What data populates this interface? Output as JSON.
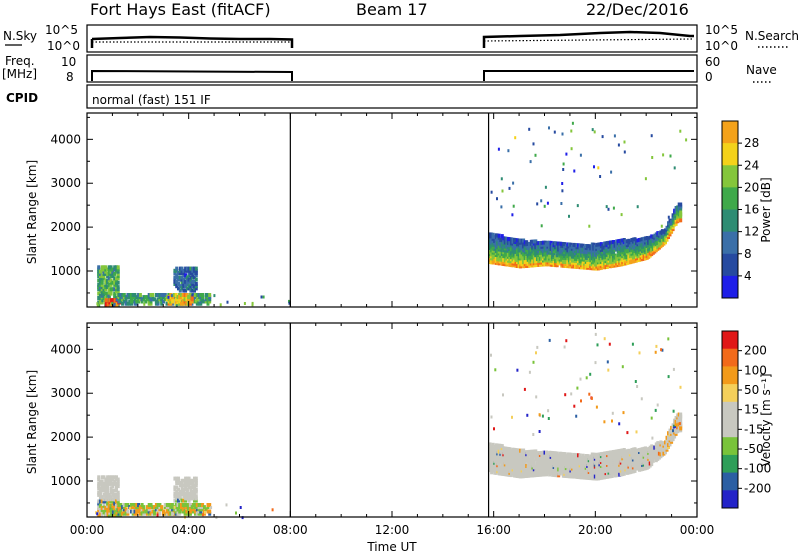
{
  "header": {
    "station": "Fort Hays East (fitACF)",
    "beam": "Beam 17",
    "date": "22/Dec/2016"
  },
  "strips": {
    "nsky_label": "N.Sky",
    "nsearch_label": "N.Search",
    "noise_ticks": [
      "10^5",
      "10^0"
    ],
    "freq_label": "Freq.",
    "freq_unit": "[MHz]",
    "freq_ticks": [
      "10",
      "8"
    ],
    "nave_label": "Nave",
    "nave_ticks": [
      "60",
      "0"
    ],
    "cpid_label": "CPID",
    "cpid_text": "normal (fast) 151 IF"
  },
  "colors": {
    "power": [
      "#1f1fe8",
      "#264aa0",
      "#3a6fa8",
      "#2e8c73",
      "#3fa94a",
      "#84c63b",
      "#f4d21a",
      "#f4a21a",
      "#f26a1a",
      "#e01818"
    ],
    "velocity": [
      "#e01818",
      "#f26a1a",
      "#f29a1a",
      "#f4cf5a",
      "#c8c8c0",
      "#c8c8c0",
      "#79c33a",
      "#2e9e58",
      "#2b5fa3",
      "#2323c8"
    ],
    "ground_scatter": "#c8c8c0"
  },
  "chart_data": [
    {
      "type": "heatmap",
      "panel": "power",
      "ylabel": "Slant Range [km]",
      "xlabel": "",
      "x_ticks": [
        "00:00",
        "04:00",
        "08:00",
        "12:00",
        "16:00",
        "20:00",
        "00:00"
      ],
      "xlim_hours": [
        0,
        24
      ],
      "ylim_km": [
        180,
        4600
      ],
      "y_ticks": [
        1000,
        2000,
        3000,
        4000
      ],
      "colorbar": {
        "label": "Power [dB]",
        "ticks": [
          4,
          8,
          12,
          16,
          20,
          24,
          28
        ],
        "range": [
          0,
          32
        ]
      },
      "data_gap_hours": [
        8.0,
        15.8
      ],
      "regions": [
        {
          "t": [
            0.4,
            1.2
          ],
          "r_lo": 280,
          "r_hi": 1150,
          "value": 14
        },
        {
          "t": [
            0.7,
            1.3
          ],
          "r_lo": 280,
          "r_hi": 400,
          "value": 30
        },
        {
          "t": [
            1.2,
            4.8
          ],
          "r_lo": 300,
          "r_hi": 520,
          "value": 12
        },
        {
          "t": [
            3.1,
            4.1
          ],
          "r_lo": 300,
          "r_hi": 520,
          "value": 22
        },
        {
          "t": [
            3.4,
            4.3
          ],
          "r_lo": 600,
          "r_hi": 1100,
          "value": 8
        },
        {
          "t": [
            15.8,
            21.0
          ],
          "r_lo": 1150,
          "r_hi": 1900,
          "value": 14
        },
        {
          "t": [
            21.0,
            23.3
          ],
          "r_lo": 1200,
          "r_hi": 2500,
          "value": 16
        }
      ],
      "band_edge_km": [
        [
          15.8,
          1250
        ],
        [
          17.0,
          1150
        ],
        [
          18.0,
          1200
        ],
        [
          19.0,
          1150
        ],
        [
          20.0,
          1100
        ],
        [
          21.0,
          1200
        ],
        [
          22.0,
          1350
        ],
        [
          22.7,
          1700
        ],
        [
          23.2,
          2200
        ]
      ],
      "band_top_km": [
        [
          15.8,
          1900
        ],
        [
          17.0,
          1750
        ],
        [
          18.0,
          1700
        ],
        [
          19.0,
          1650
        ],
        [
          20.0,
          1650
        ],
        [
          21.0,
          1750
        ],
        [
          22.0,
          1800
        ],
        [
          22.7,
          2000
        ],
        [
          23.2,
          2600
        ]
      ]
    },
    {
      "type": "heatmap",
      "panel": "velocity",
      "ylabel": "Slant Range [km]",
      "xlabel": "Time UT",
      "x_ticks": [
        "00:00",
        "04:00",
        "08:00",
        "12:00",
        "16:00",
        "20:00",
        "00:00"
      ],
      "xlim_hours": [
        0,
        24
      ],
      "ylim_km": [
        180,
        4600
      ],
      "y_ticks": [
        1000,
        2000,
        3000,
        4000
      ],
      "colorbar": {
        "label": "Velocity [m s⁻¹]",
        "ticks": [
          200,
          100,
          50,
          15,
          -15,
          -50,
          -100,
          -200
        ]
      },
      "data_gap_hours": [
        8.0,
        15.8
      ],
      "notes": "Late-day band mostly ground scatter (grey); early-day patches mixed green/orange."
    }
  ]
}
